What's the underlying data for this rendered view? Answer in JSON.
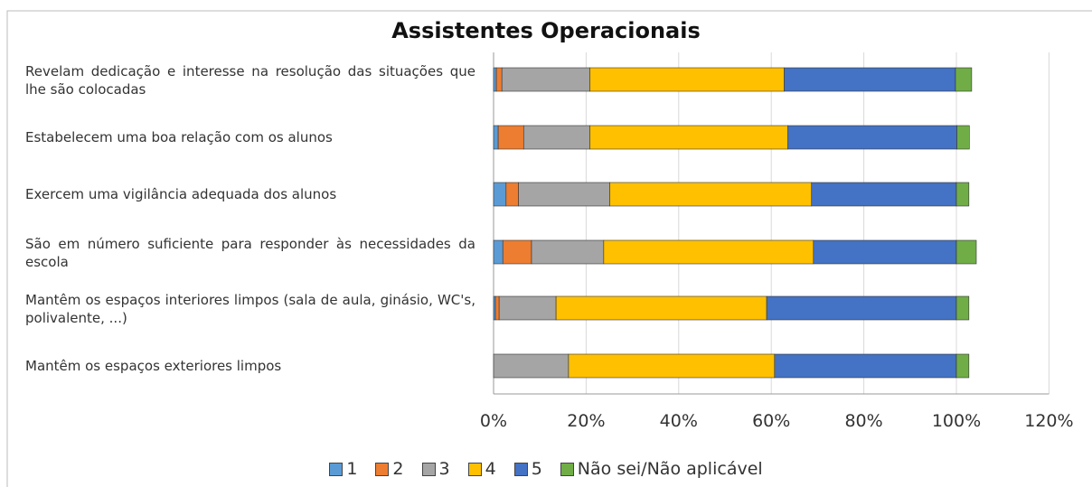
{
  "chart_data": {
    "type": "stacked-bar-horizontal",
    "title": "Assistentes Operacionais",
    "categories": [
      "Revelam dedicação e interesse na resolução das situações que lhe são colocadas",
      "Estabelecem uma boa relação com os alunos",
      "Exercem uma vigilância adequada dos alunos",
      "São em número suficiente para responder às necessidades da escola",
      "Mantêm os espaços interiores limpos (sala de aula, ginásio, WC's, polivalente, ...)",
      "Mantêm os espaços exteriores limpos"
    ],
    "series": [
      {
        "name": "1",
        "color": "#5b9bd5",
        "values": [
          0.6,
          1,
          2.7,
          2,
          0.4,
          0
        ]
      },
      {
        "name": "2",
        "color": "#ed7d31",
        "values": [
          1.2,
          5.5,
          2.7,
          6.2,
          0.8,
          0
        ]
      },
      {
        "name": "3",
        "color": "#a5a5a5",
        "values": [
          19,
          14.3,
          19.7,
          15.6,
          12.3,
          16.2
        ]
      },
      {
        "name": "4",
        "color": "#ffc000",
        "values": [
          42,
          42.8,
          43.6,
          45.3,
          45.5,
          44.5
        ]
      },
      {
        "name": "5",
        "color": "#4472c4",
        "values": [
          37,
          36.5,
          31.3,
          30.9,
          41,
          39.3
        ]
      },
      {
        "name": "Não sei/Não aplicável",
        "color": "#70ad47",
        "values": [
          3.5,
          2.7,
          2.7,
          4.3,
          2.7,
          2.7
        ]
      }
    ],
    "xlim": [
      0,
      120
    ],
    "xticks": [
      {
        "value": 0,
        "label": "0%"
      },
      {
        "value": 20,
        "label": "20%"
      },
      {
        "value": 40,
        "label": "40%"
      },
      {
        "value": 60,
        "label": "60%"
      },
      {
        "value": 80,
        "label": "80%"
      },
      {
        "value": 100,
        "label": "100%"
      },
      {
        "value": 120,
        "label": "120%"
      }
    ],
    "grid": true
  }
}
